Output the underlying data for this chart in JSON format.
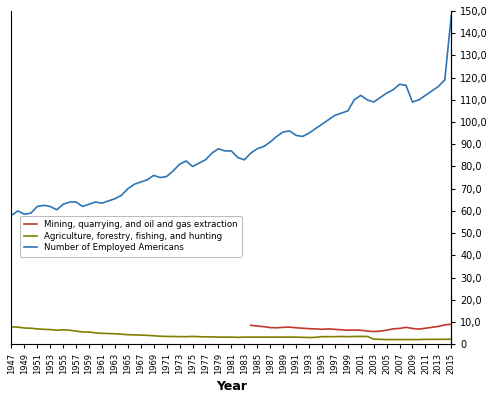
{
  "xlabel": "Year",
  "background_color": "#ffffff",
  "years": [
    1947,
    1948,
    1949,
    1950,
    1951,
    1952,
    1953,
    1954,
    1955,
    1956,
    1957,
    1958,
    1959,
    1960,
    1961,
    1962,
    1963,
    1964,
    1965,
    1966,
    1967,
    1968,
    1969,
    1970,
    1971,
    1972,
    1973,
    1974,
    1975,
    1976,
    1977,
    1978,
    1979,
    1980,
    1981,
    1982,
    1983,
    1984,
    1985,
    1986,
    1987,
    1988,
    1989,
    1990,
    1991,
    1992,
    1993,
    1994,
    1995,
    1996,
    1997,
    1998,
    1999,
    2000,
    2001,
    2002,
    2003,
    2004,
    2005,
    2006,
    2007,
    2008,
    2009,
    2010,
    2011,
    2012,
    2013,
    2014,
    2015
  ],
  "mining": [
    null,
    null,
    null,
    null,
    null,
    null,
    null,
    null,
    null,
    null,
    null,
    null,
    null,
    null,
    null,
    null,
    null,
    null,
    null,
    null,
    null,
    null,
    null,
    null,
    null,
    null,
    null,
    null,
    null,
    null,
    null,
    null,
    null,
    null,
    null,
    null,
    null,
    8500,
    8200,
    7900,
    7500,
    7400,
    7600,
    7700,
    7400,
    7200,
    7000,
    6900,
    6700,
    6900,
    6700,
    6500,
    6300,
    6400,
    6300,
    5900,
    5700,
    5900,
    6300,
    6900,
    7100,
    7600,
    7100,
    6800,
    7200,
    7600,
    8000,
    8700,
    9000
  ],
  "agriculture": [
    7800,
    7700,
    7300,
    7200,
    6900,
    6700,
    6600,
    6300,
    6500,
    6300,
    5900,
    5500,
    5500,
    5100,
    4900,
    4800,
    4700,
    4500,
    4300,
    4200,
    4100,
    4000,
    3800,
    3600,
    3500,
    3500,
    3400,
    3400,
    3500,
    3400,
    3300,
    3300,
    3200,
    3200,
    3200,
    3100,
    3200,
    3200,
    3200,
    3200,
    3200,
    3200,
    3200,
    3200,
    3200,
    3100,
    3000,
    3100,
    3400,
    3400,
    3400,
    3500,
    3400,
    3500,
    3500,
    3500,
    2300,
    2200,
    2100,
    2100,
    2100,
    2100,
    2100,
    2100,
    2200,
    2200,
    2200,
    2200,
    2300
  ],
  "total_employed": [
    58000,
    60000,
    58500,
    59000,
    62000,
    62500,
    62000,
    60500,
    63000,
    64000,
    64000,
    62000,
    63000,
    64000,
    63500,
    64500,
    65500,
    67000,
    70000,
    72000,
    73000,
    74000,
    76000,
    75000,
    75500,
    78000,
    81000,
    82500,
    80000,
    81500,
    83000,
    86000,
    88000,
    87000,
    87000,
    84000,
    83000,
    86000,
    88000,
    89000,
    91000,
    93500,
    95500,
    96000,
    94000,
    93500,
    95000,
    97000,
    99000,
    101000,
    103000,
    104000,
    105000,
    110000,
    112000,
    110000,
    109000,
    111000,
    113000,
    114500,
    117000,
    116500,
    109000,
    110000,
    112000,
    114000,
    116000,
    119000,
    148000
  ],
  "mining_color": "#c0392b",
  "agriculture_color": "#808000",
  "total_color": "#2e75b6",
  "legend_labels": [
    "Mining, quarrying, and oil and gas extraction",
    "Agriculture, forestry, fishing, and hunting",
    "Number of Employed Americans"
  ],
  "yticks_right": [
    0,
    10000,
    20000,
    30000,
    40000,
    50000,
    60000,
    70000,
    80000,
    90000,
    100000,
    110000,
    120000,
    130000,
    140000,
    150000
  ],
  "ytick_labels_right": [
    "0",
    "10,0",
    "20,0",
    "30,0",
    "40,0",
    "50,0",
    "60,0",
    "70,0",
    "80,0",
    "90,0",
    "100,0",
    "110,0",
    "120,0",
    "130,0",
    "140,0",
    "150,0"
  ]
}
